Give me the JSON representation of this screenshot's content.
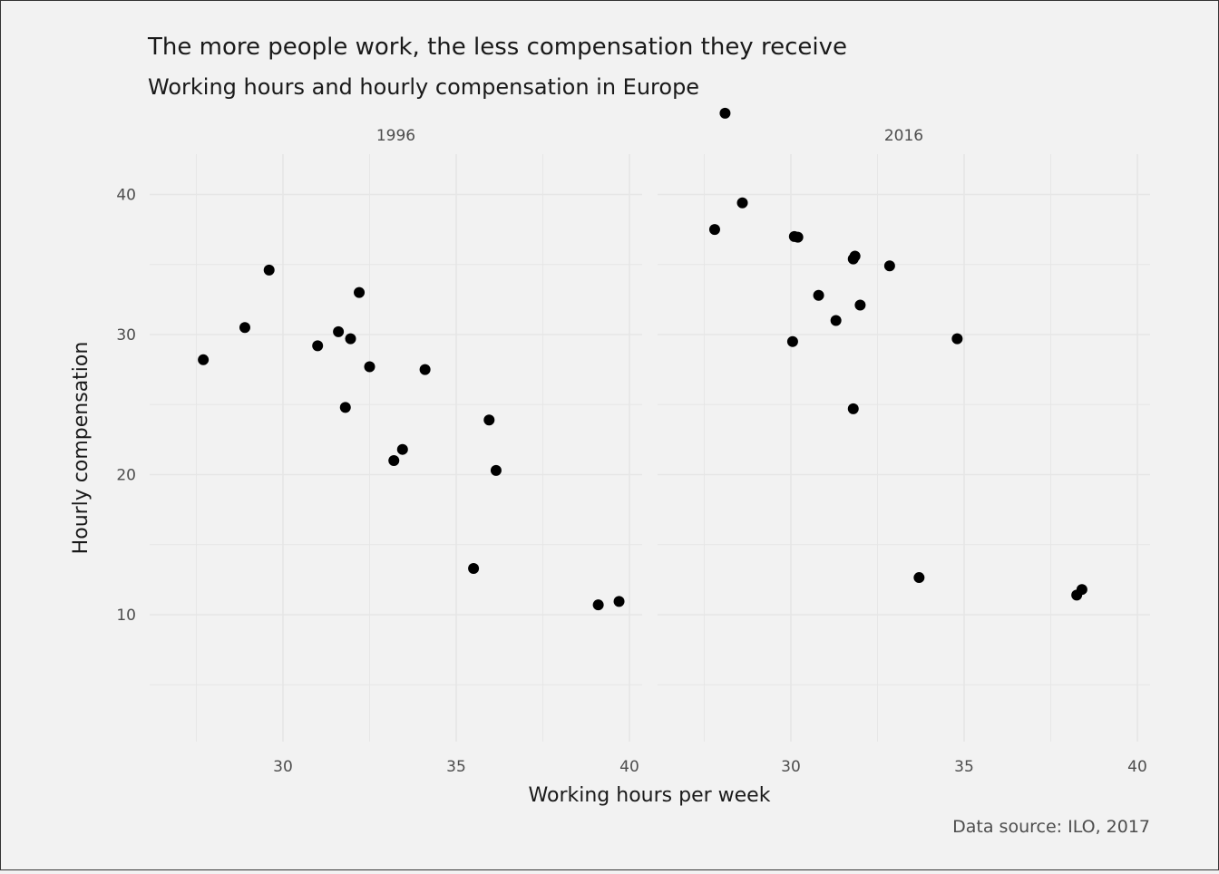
{
  "chart_data": {
    "type": "scatter",
    "title": "The more people work, the less compensation they receive",
    "subtitle": "Working hours and hourly compensation in Europe",
    "xlabel": "Working hours per week",
    "ylabel": "Hourly compensation",
    "caption": "Data source: ILO, 2017",
    "grid": true,
    "panels": [
      {
        "label": "1996",
        "xlim": [
          27.4,
          40.5
        ],
        "ylim": [
          5,
          47
        ],
        "points": [
          {
            "x": 27.7,
            "y": 28.2
          },
          {
            "x": 28.9,
            "y": 30.5
          },
          {
            "x": 29.6,
            "y": 34.6
          },
          {
            "x": 31.0,
            "y": 29.2
          },
          {
            "x": 31.6,
            "y": 30.2
          },
          {
            "x": 31.8,
            "y": 24.8
          },
          {
            "x": 31.95,
            "y": 29.7
          },
          {
            "x": 32.2,
            "y": 33.0
          },
          {
            "x": 32.5,
            "y": 27.7
          },
          {
            "x": 33.2,
            "y": 21.0
          },
          {
            "x": 33.45,
            "y": 21.8
          },
          {
            "x": 34.1,
            "y": 27.5
          },
          {
            "x": 35.5,
            "y": 13.3
          },
          {
            "x": 35.95,
            "y": 23.9
          },
          {
            "x": 36.15,
            "y": 20.3
          },
          {
            "x": 39.1,
            "y": 10.7
          },
          {
            "x": 39.7,
            "y": 10.95
          }
        ]
      },
      {
        "label": "2016",
        "xlim": [
          27.4,
          40.5
        ],
        "ylim": [
          5,
          47
        ],
        "points": [
          {
            "x": 27.8,
            "y": 37.5
          },
          {
            "x": 28.1,
            "y": 45.8
          },
          {
            "x": 28.6,
            "y": 39.4
          },
          {
            "x": 30.05,
            "y": 29.5
          },
          {
            "x": 30.1,
            "y": 37.0
          },
          {
            "x": 30.2,
            "y": 36.95
          },
          {
            "x": 30.8,
            "y": 32.8
          },
          {
            "x": 31.3,
            "y": 31.0
          },
          {
            "x": 31.8,
            "y": 35.4
          },
          {
            "x": 31.85,
            "y": 35.6
          },
          {
            "x": 31.8,
            "y": 24.7
          },
          {
            "x": 32.0,
            "y": 32.1
          },
          {
            "x": 32.85,
            "y": 34.9
          },
          {
            "x": 33.7,
            "y": 12.65
          },
          {
            "x": 34.8,
            "y": 29.7
          },
          {
            "x": 38.25,
            "y": 11.4
          },
          {
            "x": 38.4,
            "y": 11.8
          }
        ]
      }
    ],
    "x_ticks": [
      30,
      35,
      40
    ],
    "y_ticks": [
      10,
      20,
      30,
      40
    ]
  },
  "colors": {
    "background": "#f2f2f2",
    "grid": "#e6e6e6",
    "point": "#000000",
    "text": "#4d4d4d",
    "title": "#1a1a1a"
  }
}
